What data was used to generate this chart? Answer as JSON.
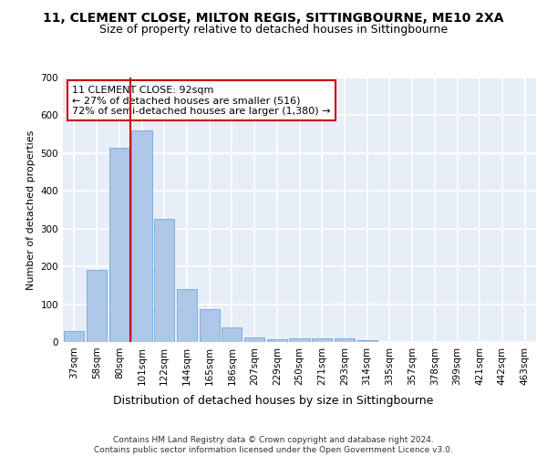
{
  "title1": "11, CLEMENT CLOSE, MILTON REGIS, SITTINGBOURNE, ME10 2XA",
  "title2": "Size of property relative to detached houses in Sittingbourne",
  "xlabel": "Distribution of detached houses by size in Sittingbourne",
  "ylabel": "Number of detached properties",
  "categories": [
    "37sqm",
    "58sqm",
    "80sqm",
    "101sqm",
    "122sqm",
    "144sqm",
    "165sqm",
    "186sqm",
    "207sqm",
    "229sqm",
    "250sqm",
    "271sqm",
    "293sqm",
    "314sqm",
    "335sqm",
    "357sqm",
    "378sqm",
    "399sqm",
    "421sqm",
    "442sqm",
    "463sqm"
  ],
  "values": [
    30,
    190,
    515,
    560,
    325,
    140,
    87,
    38,
    13,
    8,
    10,
    10,
    10,
    6,
    0,
    0,
    0,
    0,
    0,
    0,
    0
  ],
  "bar_color": "#aec6e8",
  "bar_edge_color": "#5a9fd4",
  "vline_pos": 2.5,
  "vline_color": "#cc0000",
  "annotation_text": "11 CLEMENT CLOSE: 92sqm\n← 27% of detached houses are smaller (516)\n72% of semi-detached houses are larger (1,380) →",
  "annotation_box_color": "#ffffff",
  "annotation_box_edge_color": "#cc0000",
  "ylim": [
    0,
    700
  ],
  "yticks": [
    0,
    100,
    200,
    300,
    400,
    500,
    600,
    700
  ],
  "background_color": "#e8eef8",
  "grid_color": "#ffffff",
  "footer": "Contains HM Land Registry data © Crown copyright and database right 2024.\nContains public sector information licensed under the Open Government Licence v3.0.",
  "title1_fontsize": 10,
  "title2_fontsize": 9,
  "xlabel_fontsize": 9,
  "ylabel_fontsize": 8,
  "tick_fontsize": 7.5,
  "annotation_fontsize": 8,
  "footer_fontsize": 6.5
}
